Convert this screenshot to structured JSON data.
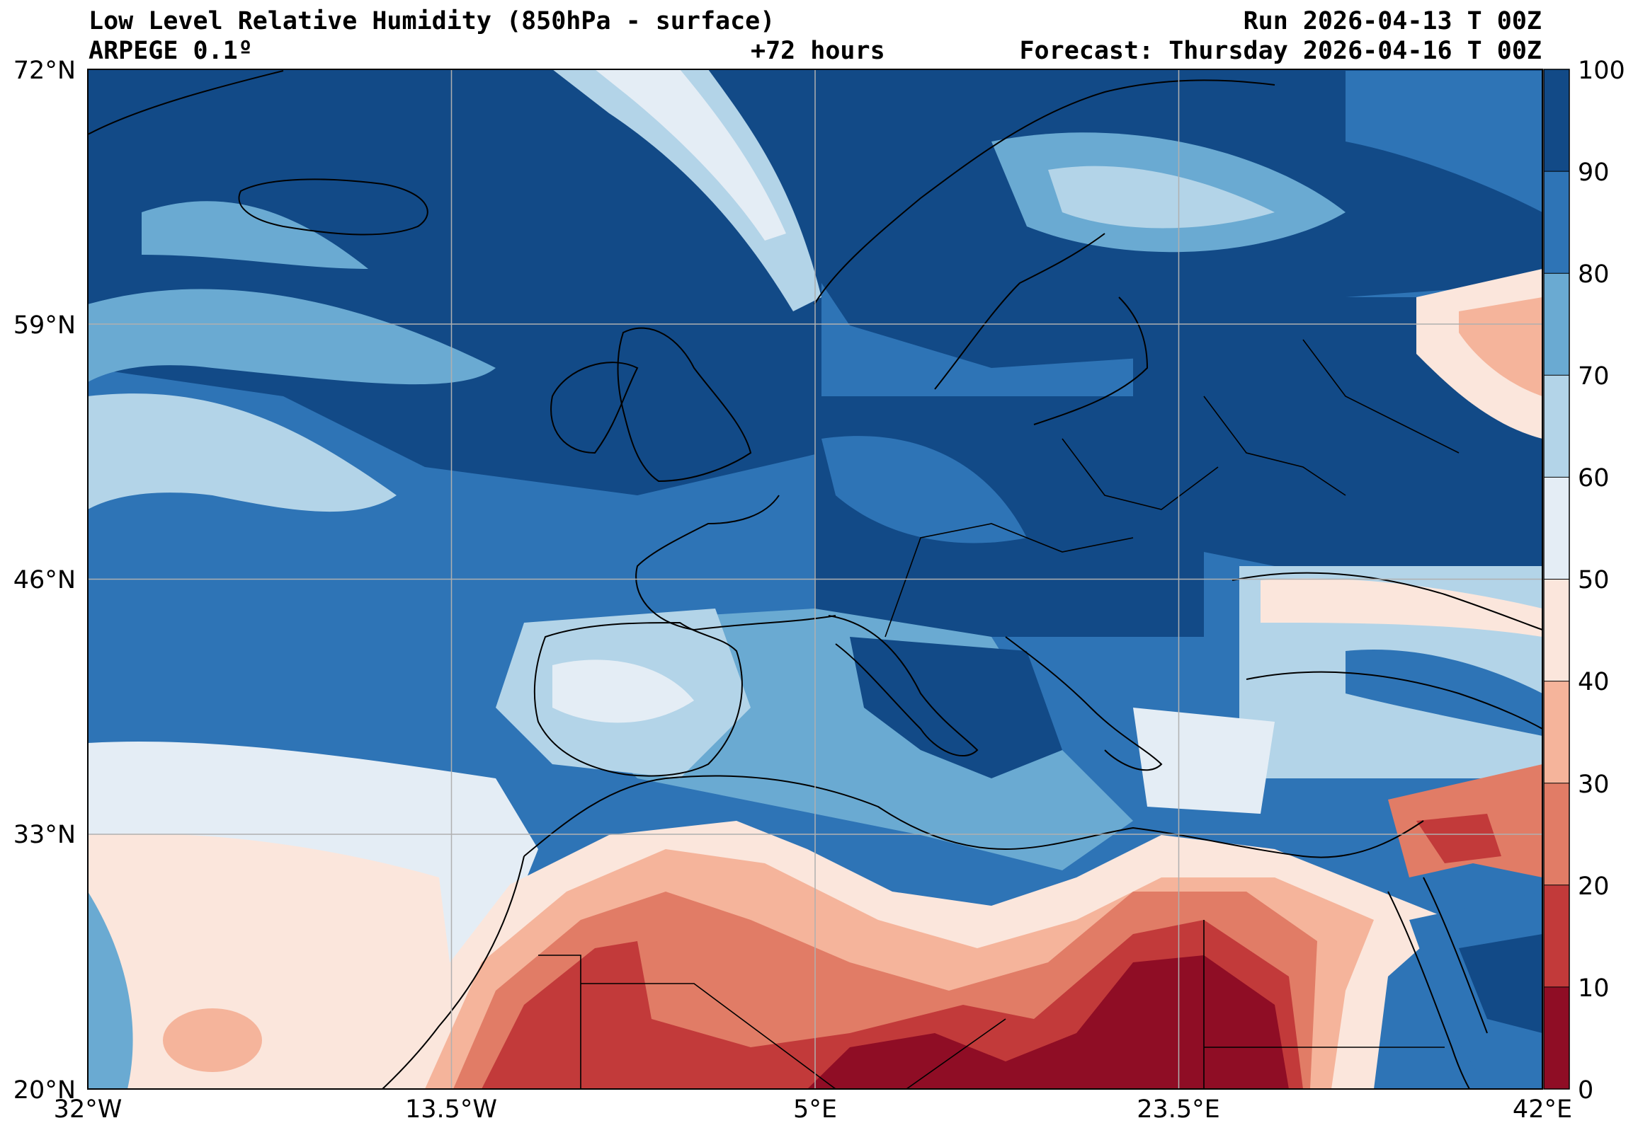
{
  "header": {
    "title": "Low Level Relative Humidity (850hPa - surface)",
    "model": "ARPEGE 0.1º",
    "lead": "+72 hours",
    "run": "Run 2026-04-13 T 00Z",
    "forecast": "Forecast: Thursday 2026-04-16 T 00Z"
  },
  "axes": {
    "lat_labels": [
      "72°N",
      "59°N",
      "46°N",
      "33°N",
      "20°N"
    ],
    "lon_labels": [
      "32°W",
      "13.5°W",
      "5°E",
      "23.5°E",
      "42°E"
    ]
  },
  "colorbar": {
    "ticks": [
      "100",
      "90",
      "80",
      "70",
      "60",
      "50",
      "40",
      "30",
      "20",
      "10",
      "0"
    ],
    "colors": [
      "#124a87",
      "#2e74b6",
      "#6aaad2",
      "#b3d4e8",
      "#e4edf5",
      "#fbe6dc",
      "#f5b49b",
      "#e17c66",
      "#c23a3a",
      "#8f0d25"
    ]
  },
  "map": {
    "extent": {
      "lon_min": -32,
      "lon_max": 42,
      "lat_min": 20,
      "lat_max": 72
    },
    "grid": true
  }
}
